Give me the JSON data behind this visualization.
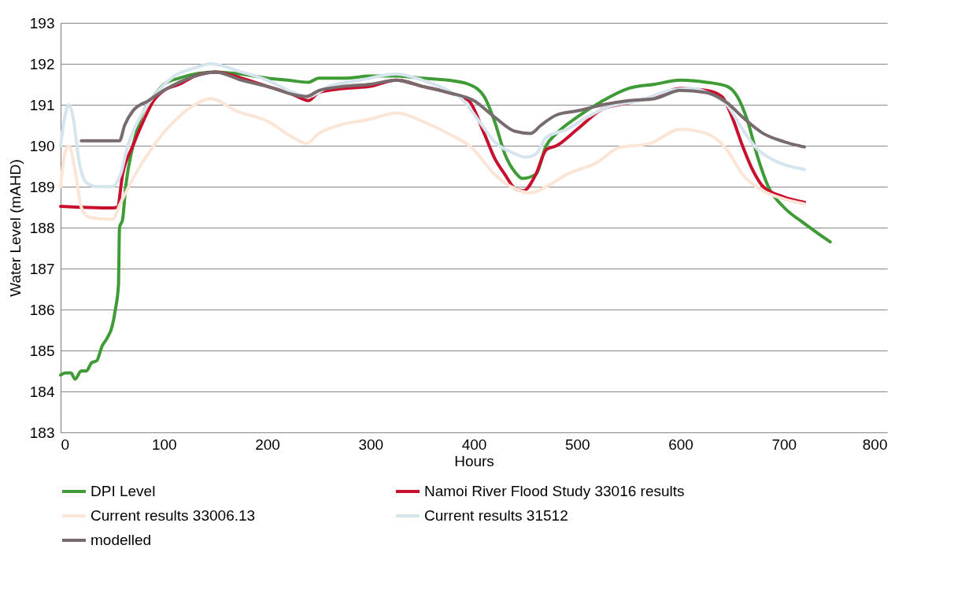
{
  "chart_data": {
    "type": "line",
    "xlabel": "Hours",
    "ylabel": "Water Level (mAHD)",
    "xlim": [
      0,
      800
    ],
    "xticks": [
      0,
      100,
      200,
      300,
      400,
      500,
      600,
      700,
      800
    ],
    "ylim": [
      183,
      193
    ],
    "yticks": [
      183,
      184,
      185,
      186,
      187,
      188,
      189,
      190,
      191,
      192,
      193
    ],
    "grid": "y",
    "legend": "bottom",
    "marker": "none",
    "line_style": "solid",
    "series": [
      {
        "name": "DPI Level",
        "color": "#3f9b35",
        "x": [
          0,
          5,
          10,
          14,
          20,
          25,
          30,
          35,
          40,
          45,
          50,
          53,
          56,
          57,
          60,
          63,
          70,
          78,
          90,
          100,
          115,
          130,
          150,
          175,
          200,
          220,
          240,
          250,
          275,
          300,
          325,
          350,
          375,
          395,
          410,
          420,
          430,
          440,
          447,
          460,
          470,
          480,
          500,
          525,
          550,
          575,
          600,
          625,
          645,
          655,
          665,
          675,
          685,
          700,
          720,
          745
        ],
        "values": [
          184.4,
          184.45,
          184.45,
          184.3,
          184.5,
          184.5,
          184.7,
          184.75,
          185.1,
          185.3,
          185.6,
          186.0,
          186.6,
          188.0,
          188.2,
          189.0,
          190.0,
          190.7,
          191.2,
          191.5,
          191.65,
          191.75,
          191.8,
          191.75,
          191.65,
          191.6,
          191.55,
          191.65,
          191.65,
          191.7,
          191.7,
          191.65,
          191.6,
          191.5,
          191.2,
          190.6,
          189.8,
          189.35,
          189.2,
          189.3,
          190.0,
          190.3,
          190.7,
          191.1,
          191.4,
          191.5,
          191.6,
          191.55,
          191.45,
          191.2,
          190.6,
          189.7,
          189.0,
          188.5,
          188.1,
          187.65
        ]
      },
      {
        "name": "Namoi River Flood Study 33016 results",
        "color": "#c8102e",
        "x": [
          0,
          50,
          55,
          60,
          70,
          80,
          90,
          100,
          115,
          130,
          150,
          175,
          200,
          225,
          240,
          250,
          275,
          300,
          325,
          350,
          375,
          395,
          410,
          420,
          430,
          440,
          448,
          460,
          470,
          480,
          500,
          525,
          550,
          575,
          600,
          625,
          640,
          650,
          660,
          670,
          680,
          700,
          720
        ],
        "values": [
          188.52,
          188.48,
          188.5,
          189.3,
          190.0,
          190.6,
          191.1,
          191.35,
          191.5,
          191.7,
          191.8,
          191.65,
          191.45,
          191.25,
          191.1,
          191.3,
          191.4,
          191.45,
          191.6,
          191.45,
          191.3,
          191.1,
          190.3,
          189.7,
          189.3,
          188.95,
          188.9,
          189.3,
          189.9,
          190.0,
          190.4,
          190.9,
          191.05,
          191.2,
          191.4,
          191.35,
          191.2,
          190.7,
          190.0,
          189.4,
          189.0,
          188.75,
          188.62
        ]
      },
      {
        "name": "Current results 33006.13",
        "color": "#fbe5d6",
        "x": [
          0,
          4,
          8,
          14,
          20,
          28,
          50,
          58,
          70,
          90,
          110,
          130,
          145,
          170,
          200,
          225,
          238,
          250,
          270,
          300,
          325,
          350,
          375,
          400,
          410,
          420,
          440,
          455,
          470,
          490,
          520,
          540,
          570,
          600,
          625,
          645,
          660,
          680,
          700,
          720
        ],
        "values": [
          189.0,
          189.8,
          190.0,
          189.4,
          188.5,
          188.25,
          188.2,
          188.6,
          189.2,
          190.0,
          190.6,
          191.0,
          191.15,
          190.85,
          190.6,
          190.2,
          190.05,
          190.3,
          190.5,
          190.65,
          190.8,
          190.6,
          190.3,
          189.9,
          189.6,
          189.3,
          188.95,
          188.85,
          189.0,
          189.3,
          189.6,
          189.95,
          190.05,
          190.4,
          190.3,
          189.9,
          189.3,
          188.9,
          188.7,
          188.58
        ]
      },
      {
        "name": "Current results 31512",
        "color": "#d6e4ee",
        "x": [
          0,
          4,
          8,
          12,
          18,
          25,
          35,
          50,
          58,
          65,
          75,
          90,
          110,
          130,
          145,
          175,
          200,
          225,
          240,
          260,
          290,
          325,
          350,
          375,
          390,
          405,
          420,
          440,
          450,
          460,
          470,
          490,
          510,
          530,
          560,
          590,
          610,
          630,
          645,
          660,
          675,
          690,
          720
        ],
        "values": [
          190.0,
          190.7,
          191.0,
          190.7,
          189.6,
          189.1,
          189.0,
          189.0,
          189.3,
          190.0,
          190.6,
          191.2,
          191.7,
          191.9,
          192.0,
          191.8,
          191.6,
          191.3,
          191.2,
          191.45,
          191.6,
          191.75,
          191.6,
          191.35,
          191.1,
          190.6,
          190.1,
          189.8,
          189.72,
          189.8,
          190.2,
          190.4,
          190.7,
          190.95,
          191.1,
          191.35,
          191.4,
          191.25,
          191.0,
          190.4,
          189.9,
          189.65,
          189.42
        ]
      },
      {
        "name": "modelled",
        "color": "#776b6e",
        "x": [
          20,
          57,
          62,
          70,
          85,
          100,
          115,
          130,
          150,
          175,
          200,
          225,
          238,
          250,
          275,
          300,
          325,
          350,
          375,
          400,
          420,
          440,
          455,
          465,
          480,
          500,
          525,
          550,
          575,
          600,
          625,
          645,
          660,
          680,
          700,
          720
        ],
        "values": [
          190.12,
          190.12,
          190.5,
          190.85,
          191.1,
          191.35,
          191.55,
          191.7,
          191.8,
          191.6,
          191.45,
          191.25,
          191.2,
          191.35,
          191.45,
          191.5,
          191.6,
          191.45,
          191.3,
          191.1,
          190.7,
          190.35,
          190.3,
          190.5,
          190.75,
          190.85,
          191.0,
          191.1,
          191.15,
          191.35,
          191.3,
          191.05,
          190.7,
          190.3,
          190.1,
          189.97
        ]
      }
    ]
  }
}
